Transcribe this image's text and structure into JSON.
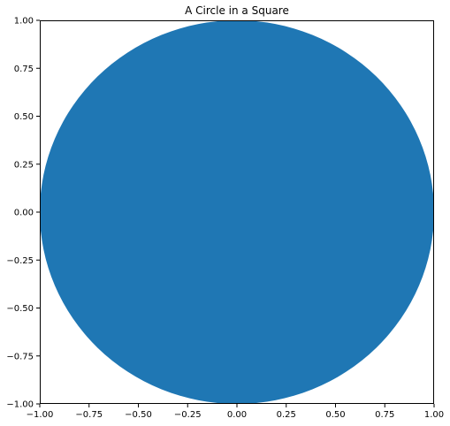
{
  "chart_data": {
    "type": "scatter",
    "title": "A Circle in a Square",
    "xlabel": "",
    "ylabel": "",
    "xlim": [
      -1.0,
      1.0
    ],
    "ylim": [
      -1.0,
      1.0
    ],
    "grid": false,
    "x_ticks": [
      "−1.00",
      "−0.75",
      "−0.50",
      "−0.25",
      "0.00",
      "0.25",
      "0.50",
      "0.75",
      "1.00"
    ],
    "y_ticks": [
      "−1.00",
      "−0.75",
      "−0.50",
      "−0.25",
      "0.00",
      "0.25",
      "0.50",
      "0.75",
      "1.00"
    ],
    "shapes": [
      {
        "shape": "circle",
        "center": [
          0.0,
          0.0
        ],
        "radius": 1.0,
        "color": "#1f77b4"
      }
    ]
  }
}
